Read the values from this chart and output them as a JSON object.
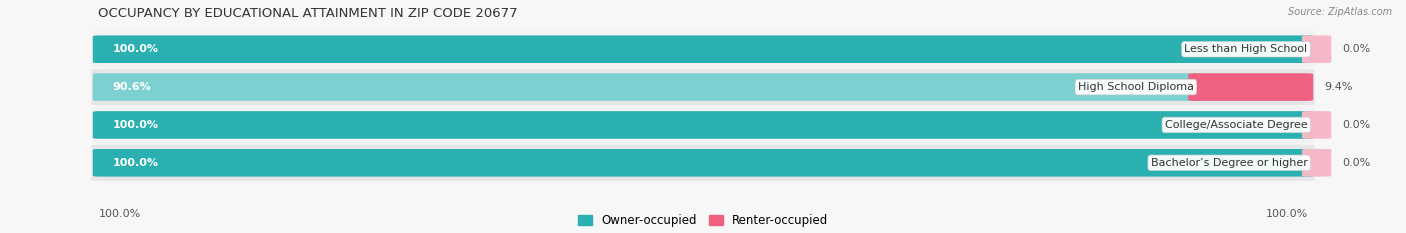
{
  "title": "OCCUPANCY BY EDUCATIONAL ATTAINMENT IN ZIP CODE 20677",
  "source": "Source: ZipAtlas.com",
  "categories": [
    "Less than High School",
    "High School Diploma",
    "College/Associate Degree",
    "Bachelor’s Degree or higher"
  ],
  "owner_values": [
    100.0,
    90.6,
    100.0,
    100.0
  ],
  "renter_values": [
    0.0,
    9.4,
    0.0,
    0.0
  ],
  "owner_color_full": "#2ab0b0",
  "owner_color_partial": "#7dd0d0",
  "renter_color_full": "#f06080",
  "renter_color_zero": "#f5b8c8",
  "row_bg_odd": "#f0f0f0",
  "row_bg_even": "#e0e0e0",
  "background_color": "#f7f7f7",
  "title_fontsize": 9.5,
  "source_fontsize": 7,
  "bar_label_fontsize": 8,
  "cat_label_fontsize": 8,
  "xlim_left": -5,
  "xlim_right": 115,
  "legend_labels": [
    "Owner-occupied",
    "Renter-occupied"
  ]
}
